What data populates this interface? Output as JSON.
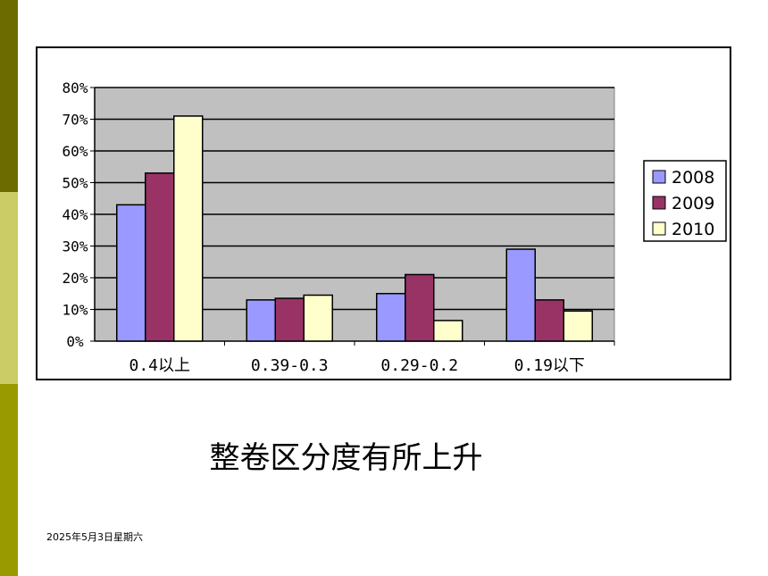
{
  "slide": {
    "caption": "整卷区分度有所上升",
    "footer_date": "2025年5月3日星期六",
    "colors": {
      "side_bar_top": "#6b6b00",
      "side_bar_mid": "#cccc66",
      "side_bar_bottom": "#999900"
    }
  },
  "chart_data": {
    "type": "bar",
    "categories": [
      "0.4以上",
      "0.39-0.3",
      "0.29-0.2",
      "0.19以下"
    ],
    "series": [
      {
        "name": "2008",
        "values": [
          43,
          13,
          15,
          29
        ],
        "color": "#9999ff"
      },
      {
        "name": "2009",
        "values": [
          53,
          13.5,
          21,
          13
        ],
        "color": "#993366"
      },
      {
        "name": "2010",
        "values": [
          71,
          14.5,
          6.5,
          9.5
        ],
        "color": "#ffffcc"
      }
    ],
    "y_ticks": [
      "0%",
      "10%",
      "20%",
      "30%",
      "40%",
      "50%",
      "60%",
      "70%",
      "80%"
    ],
    "ylim": [
      0,
      80
    ],
    "grid": true,
    "plot_background": "#c0c0c0",
    "legend_position": "right",
    "title": "",
    "xlabel": "",
    "ylabel": ""
  }
}
